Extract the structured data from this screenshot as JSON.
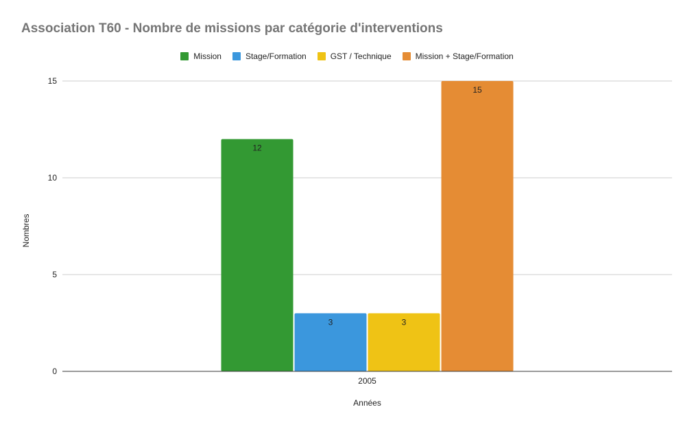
{
  "chart_data": {
    "type": "bar",
    "title": "Association T60 - Nombre de missions par catégorie d'interventions",
    "xlabel": "Années",
    "ylabel": "Nombres",
    "categories": [
      "2005"
    ],
    "ylim": [
      0,
      15
    ],
    "yticks": [
      0,
      5,
      10,
      15
    ],
    "grid": true,
    "legend_position": "top",
    "series": [
      {
        "name": "Mission",
        "values": [
          12
        ],
        "color": "#339933",
        "label_color": "#ffffff"
      },
      {
        "name": "Stage/Formation",
        "values": [
          3
        ],
        "color": "#3b97dd",
        "label_color": "#222222"
      },
      {
        "name": "GST / Technique",
        "values": [
          3
        ],
        "color": "#efc315",
        "label_color": "#222222"
      },
      {
        "name": "Mission + Stage/Formation",
        "values": [
          15
        ],
        "color": "#e58c34",
        "label_color": "#222222"
      }
    ]
  }
}
